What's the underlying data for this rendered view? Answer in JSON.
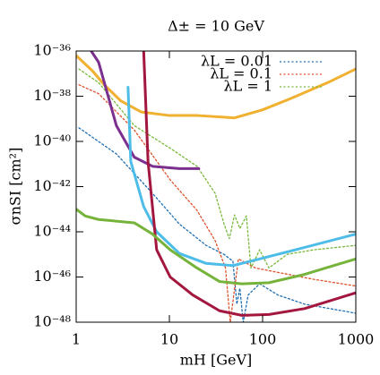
{
  "chart_data": {
    "type": "line",
    "title": "Δ± = 10 GeV",
    "x_label": "mH [GeV]",
    "y_label": "σnSI [cm²]",
    "xscale": "log",
    "yscale": "log",
    "legend": "upper right",
    "xlim": [
      1,
      1000
    ],
    "xticks": [
      1,
      10,
      100,
      1000
    ],
    "ylim": [
      1e-48,
      1e-36
    ],
    "yticks": [
      {
        "value": 1e-48,
        "label": "10⁻⁴⁸"
      },
      {
        "value": 1e-46,
        "label": "10⁻⁴⁶"
      },
      {
        "value": 1e-44,
        "label": "10⁻⁴⁴"
      },
      {
        "value": 1e-42,
        "label": "10⁻⁴²"
      },
      {
        "value": 1e-40,
        "label": "10⁻⁴⁰"
      },
      {
        "value": 1e-38,
        "label": "10⁻³⁸"
      },
      {
        "value": 1e-36,
        "label": "10⁻³⁶"
      }
    ],
    "series": [
      {
        "name": "λL = 0.01",
        "color": "#1f6fb4",
        "dash": true,
        "width": 1.3,
        "x": [
          1.07,
          2.7,
          6.6,
          12.8,
          24.8,
          38.6,
          48,
          53,
          57,
          62,
          70,
          93,
          146,
          282,
          1000
        ],
        "values": [
          4e-40,
          2.8e-41,
          5e-43,
          2.2e-44,
          2.5e-45,
          1e-45,
          5e-46,
          6.3e-48,
          3.2e-47,
          1e-48,
          1.6e-47,
          5e-47,
          1.6e-47,
          6.3e-48,
          2.5e-48
        ]
      },
      {
        "name": "λL = 0.1",
        "color": "#e0502a",
        "dash": true,
        "width": 1.3,
        "x": [
          1.07,
          1.74,
          4.2,
          10.2,
          19.8,
          31,
          40,
          45,
          55,
          84,
          146,
          354,
          1000
        ],
        "values": [
          3.2e-38,
          1.3e-38,
          3.2e-40,
          2e-42,
          8.9e-44,
          4e-45,
          2.5e-46,
          1e-48,
          6.3e-46,
          2.5e-46,
          1.6e-46,
          7.9e-47,
          4e-47
        ]
      },
      {
        "name": "λL = 1",
        "color": "#78b83a",
        "dash": true,
        "width": 1.3,
        "x": [
          1.07,
          1.74,
          4.2,
          10.2,
          19.8,
          31,
          38.6,
          44,
          50,
          57,
          67,
          75,
          93,
          117,
          183,
          354,
          1000
        ],
        "values": [
          1.6e-37,
          4e-38,
          5e-40,
          5e-41,
          7.9e-42,
          5e-43,
          2.2e-44,
          5e-45,
          5.6e-44,
          1.4e-44,
          5e-44,
          2.5e-46,
          1.6e-45,
          2.5e-46,
          1e-45,
          1.6e-45,
          2.5e-45
        ]
      },
      {
        "color": "#f0b030",
        "width": 3,
        "x": [
          1,
          1.5,
          2,
          3,
          5,
          10,
          20,
          50,
          100,
          200,
          500,
          1000
        ],
        "values": [
          6.3e-37,
          1.3e-37,
          3.2e-38,
          6.3e-39,
          2e-39,
          1.4e-39,
          1.4e-39,
          1.1e-39,
          2.5e-39,
          7.9e-39,
          4e-38,
          1.6e-37
        ]
      },
      {
        "color": "#7b2f8e",
        "width": 3,
        "x": [
          1.45,
          1.74,
          2.7,
          4.2,
          6.6,
          12.8,
          20.7
        ],
        "values": [
          1e-36,
          3.2e-37,
          5e-40,
          2e-41,
          7.9e-42,
          6.3e-42,
          6.3e-42
        ]
      },
      {
        "color": "#4dbde8",
        "width": 3,
        "x": [
          3.6,
          3.85,
          5.3,
          7.3,
          12.8,
          24.8,
          48,
          93,
          226,
          1000
        ],
        "values": [
          2.5e-38,
          1.3e-41,
          1.3e-43,
          1e-44,
          1.1e-45,
          4e-46,
          3.2e-46,
          6.3e-46,
          1.6e-45,
          7.9e-45
        ]
      },
      {
        "color": "#a3173f",
        "width": 3,
        "x": [
          5.3,
          5.9,
          7.3,
          10.2,
          17.8,
          34.5,
          60,
          117,
          282,
          1000
        ],
        "values": [
          1e-36,
          1.3e-41,
          1.6e-45,
          1e-46,
          1.6e-47,
          3.2e-48,
          2e-48,
          2.2e-48,
          4e-48,
          2e-47
        ]
      },
      {
        "color": "#76b33a",
        "width": 3,
        "x": [
          1,
          1.25,
          1.74,
          4.2,
          6.6,
          10.2,
          19.8,
          34.5,
          60,
          117,
          282,
          1000
        ],
        "values": [
          1e-43,
          5e-44,
          3.5e-44,
          2.5e-44,
          7.9e-45,
          1.6e-45,
          2.5e-46,
          6.3e-47,
          5e-47,
          5.6e-47,
          1.3e-46,
          6.3e-46
        ]
      }
    ]
  }
}
